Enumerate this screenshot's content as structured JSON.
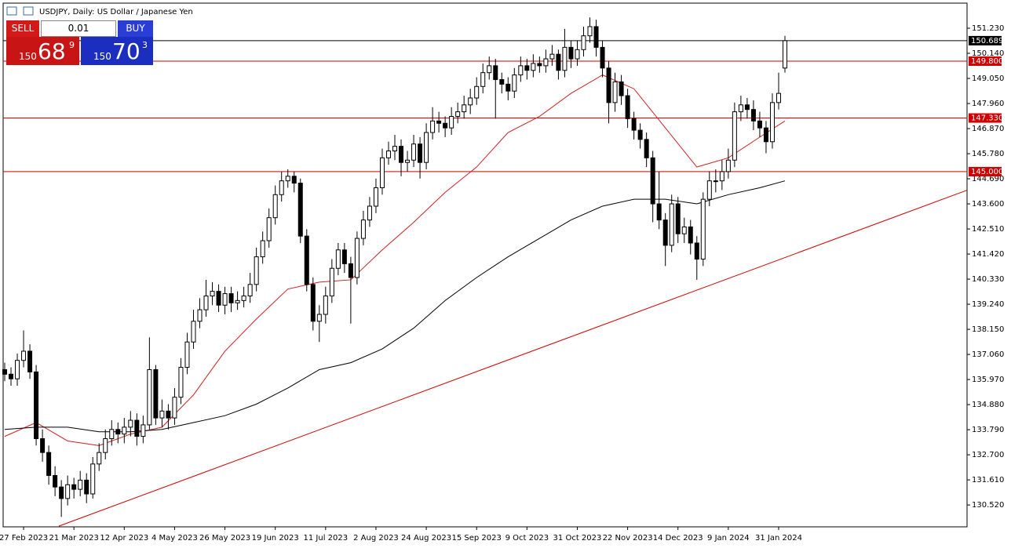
{
  "header": {
    "symbol_title": "USDJPY, Daily:  US Dollar / Japanese Yen"
  },
  "trade_panel": {
    "sell": "SELL",
    "buy": "BUY",
    "lot": "0.01",
    "bid": {
      "big": "150",
      "main": "68",
      "small": "9"
    },
    "ask": {
      "big": "150",
      "main": "70",
      "small": "3"
    }
  },
  "chart_data": {
    "type": "candlestick",
    "open": [
      136.4,
      136.2,
      136.0,
      136.8,
      137.2,
      136.3,
      133.4,
      132.8,
      131.8,
      131.3,
      130.8,
      131.4,
      131.2,
      131.6,
      131.0,
      132.3,
      132.8,
      133.4,
      133.8,
      133.6,
      133.9,
      134.2,
      133.5,
      134.0,
      136.4,
      134.3,
      134.6,
      134.3,
      135.2,
      136.5,
      137.6,
      138.5,
      139.0,
      139.6,
      139.8,
      139.2,
      139.7,
      139.3,
      139.4,
      139.6,
      140.1,
      141.3,
      142.0,
      143.0,
      144.0,
      144.6,
      144.8,
      144.5,
      142.2,
      140.1,
      138.5,
      138.8,
      139.6,
      140.8,
      141.6,
      141.0,
      140.4,
      142.1,
      142.9,
      143.5,
      144.3,
      145.6,
      145.9,
      146.1,
      145.4,
      145.5,
      146.2,
      145.4,
      146.7,
      147.2,
      147.1,
      146.9,
      147.4,
      147.6,
      147.9,
      148.2,
      148.7,
      149.3,
      149.6,
      149.0,
      148.8,
      148.5,
      149.2,
      149.6,
      149.4,
      149.7,
      149.6,
      149.9,
      150.1,
      149.4,
      150.4,
      149.9,
      150.3,
      150.9,
      151.3,
      150.4,
      149.5,
      148.0,
      148.9,
      148.3,
      147.3,
      146.8,
      146.4,
      145.6,
      143.6,
      142.9,
      141.8,
      143.6,
      142.3,
      142.6,
      141.9,
      141.2,
      143.8,
      144.6,
      144.6,
      145.0,
      145.5,
      147.6,
      147.9,
      147.7,
      147.2,
      146.9,
      146.3,
      148.0,
      149.5
    ],
    "high": [
      136.7,
      136.5,
      137.1,
      138.1,
      137.5,
      136.6,
      133.8,
      133.1,
      132.2,
      131.6,
      131.8,
      131.7,
      132.0,
      131.9,
      132.6,
      133.2,
      133.8,
      134.2,
      134.1,
      134.3,
      134.6,
      134.5,
      134.4,
      137.8,
      136.6,
      135.1,
      134.9,
      135.6,
      136.9,
      138.0,
      139.0,
      139.5,
      140.3,
      140.2,
      140.1,
      140.0,
      140.0,
      139.8,
      140.0,
      140.6,
      141.7,
      142.4,
      143.4,
      144.4,
      145.0,
      145.1,
      145.0,
      144.7,
      142.5,
      140.4,
      139.2,
      140.0,
      141.2,
      141.9,
      141.9,
      141.3,
      142.4,
      143.3,
      143.9,
      144.7,
      146.0,
      146.3,
      146.6,
      146.4,
      145.9,
      146.6,
      146.5,
      147.1,
      147.8,
      147.6,
      147.4,
      147.8,
      148.0,
      148.3,
      148.6,
      149.1,
      149.7,
      150.0,
      149.9,
      149.3,
      149.1,
      149.5,
      150.0,
      149.9,
      150.1,
      150.0,
      150.3,
      150.5,
      150.3,
      151.2,
      150.7,
      150.7,
      151.3,
      151.7,
      151.6,
      150.7,
      149.8,
      149.3,
      149.2,
      148.6,
      147.6,
      147.1,
      146.7,
      145.9,
      145.0,
      143.2,
      144.0,
      143.9,
      143.0,
      142.9,
      142.2,
      144.1,
      145.0,
      145.1,
      145.5,
      146.0,
      148.0,
      148.3,
      148.2,
      148.1,
      147.6,
      147.2,
      148.4,
      149.3,
      150.9
    ],
    "low": [
      135.9,
      135.7,
      135.7,
      136.5,
      136.0,
      133.1,
      132.4,
      131.4,
      130.9,
      130.0,
      130.5,
      130.8,
      130.9,
      130.6,
      130.8,
      132.0,
      132.5,
      133.1,
      133.2,
      133.2,
      133.5,
      133.1,
      133.2,
      133.8,
      134.0,
      133.9,
      133.8,
      134.0,
      134.9,
      136.2,
      137.3,
      138.2,
      138.7,
      139.2,
      138.9,
      138.8,
      138.9,
      139.0,
      139.1,
      139.3,
      139.8,
      141.0,
      141.7,
      142.7,
      143.7,
      144.3,
      144.1,
      141.9,
      139.8,
      138.1,
      137.6,
      138.4,
      139.3,
      140.5,
      140.6,
      138.4,
      140.1,
      141.8,
      142.6,
      143.2,
      144.0,
      145.3,
      145.5,
      144.8,
      145.0,
      145.2,
      144.7,
      145.1,
      146.4,
      146.7,
      146.5,
      146.6,
      147.1,
      147.3,
      147.5,
      147.9,
      148.4,
      149.0,
      147.3,
      148.4,
      148.1,
      148.2,
      148.9,
      149.0,
      149.1,
      149.3,
      149.3,
      149.6,
      149.0,
      149.1,
      149.5,
      149.6,
      150.0,
      150.6,
      150.0,
      149.1,
      147.1,
      147.6,
      147.9,
      146.9,
      146.4,
      146.0,
      145.2,
      142.8,
      142.5,
      140.9,
      141.5,
      141.9,
      141.9,
      141.4,
      140.3,
      140.9,
      143.5,
      144.1,
      144.2,
      144.7,
      145.2,
      147.2,
      147.3,
      146.8,
      146.5,
      145.8,
      146.0,
      147.7,
      149.3
    ],
    "close": [
      136.2,
      136.0,
      136.8,
      137.2,
      136.3,
      133.4,
      132.8,
      131.8,
      131.3,
      130.8,
      131.4,
      131.2,
      131.6,
      131.0,
      132.3,
      132.8,
      133.4,
      133.8,
      133.6,
      133.9,
      134.2,
      133.5,
      134.0,
      136.4,
      134.3,
      134.6,
      134.3,
      135.2,
      136.5,
      137.6,
      138.5,
      139.0,
      139.6,
      139.8,
      139.2,
      139.7,
      139.3,
      139.4,
      139.6,
      140.1,
      141.3,
      142.0,
      143.0,
      144.0,
      144.6,
      144.8,
      144.5,
      142.2,
      140.1,
      138.5,
      138.8,
      139.6,
      140.8,
      141.6,
      141.0,
      140.4,
      142.1,
      142.9,
      143.5,
      144.3,
      145.6,
      145.9,
      146.1,
      145.4,
      145.5,
      146.2,
      145.4,
      146.7,
      147.2,
      147.1,
      146.9,
      147.4,
      147.6,
      147.9,
      148.2,
      148.7,
      149.3,
      149.6,
      149.0,
      148.8,
      148.5,
      149.2,
      149.6,
      149.4,
      149.7,
      149.6,
      149.9,
      150.1,
      149.4,
      150.4,
      149.9,
      150.3,
      150.9,
      151.3,
      150.4,
      149.5,
      148.0,
      148.9,
      148.3,
      147.3,
      146.8,
      146.4,
      145.6,
      143.6,
      142.9,
      141.8,
      143.6,
      142.3,
      142.6,
      141.9,
      141.2,
      143.8,
      144.6,
      144.6,
      145.0,
      145.5,
      147.6,
      147.9,
      147.7,
      147.2,
      146.9,
      146.3,
      148.0,
      148.4,
      150.689
    ],
    "x_labels": [
      "27 Feb 2023",
      "21 Mar 2023",
      "12 Apr 2023",
      "4 May 2023",
      "26 May 2023",
      "19 Jun 2023",
      "11 Jul 2023",
      "2 Aug 2023",
      "24 Aug 2023",
      "15 Sep 2023",
      "9 Oct 2023",
      "31 Oct 2023",
      "22 Nov 2023",
      "14 Dec 2023",
      "9 Jan 2024",
      "31 Jan 2024"
    ],
    "ylim": [
      129.57,
      152.32
    ],
    "yticks": [
      {
        "value": 151.23,
        "label": "151.230"
      },
      {
        "value": 150.14,
        "label": "150.140"
      },
      {
        "value": 149.05,
        "label": "149.050"
      },
      {
        "value": 147.96,
        "label": "147.960"
      },
      {
        "value": 146.87,
        "label": "146.870"
      },
      {
        "value": 145.78,
        "label": "145.780"
      },
      {
        "value": 144.69,
        "label": "144.690"
      },
      {
        "value": 143.6,
        "label": "143.600"
      },
      {
        "value": 142.51,
        "label": "142.510"
      },
      {
        "value": 141.42,
        "label": "141.420"
      },
      {
        "value": 140.33,
        "label": "140.330"
      },
      {
        "value": 139.24,
        "label": "139.240"
      },
      {
        "value": 138.15,
        "label": "138.150"
      },
      {
        "value": 137.06,
        "label": "137.060"
      },
      {
        "value": 135.97,
        "label": "135.970"
      },
      {
        "value": 134.88,
        "label": "134.880"
      },
      {
        "value": 133.79,
        "label": "133.790"
      },
      {
        "value": 132.7,
        "label": "132.700"
      },
      {
        "value": 131.61,
        "label": "131.610"
      },
      {
        "value": 130.52,
        "label": "130.520"
      }
    ],
    "moving_averages": [
      {
        "color": "#d02020",
        "x": [
          0,
          5,
          10,
          15,
          20,
          25,
          30,
          35,
          40,
          45,
          50,
          55,
          60,
          65,
          70,
          75,
          80,
          85,
          90,
          95,
          100,
          105,
          110,
          115,
          120,
          124
        ],
        "values": [
          133.5,
          134.1,
          133.3,
          133.1,
          133.6,
          133.9,
          135.3,
          137.2,
          138.6,
          139.9,
          140.2,
          140.3,
          141.6,
          142.8,
          144.1,
          145.2,
          146.7,
          147.4,
          148.4,
          149.2,
          148.6,
          146.9,
          145.2,
          145.6,
          146.5,
          147.2
        ]
      },
      {
        "color": "#000000",
        "x": [
          0,
          5,
          10,
          15,
          20,
          25,
          30,
          35,
          40,
          45,
          50,
          55,
          60,
          65,
          70,
          75,
          80,
          85,
          90,
          95,
          100,
          105,
          110,
          115,
          120,
          124
        ],
        "values": [
          133.8,
          133.9,
          133.9,
          133.7,
          133.7,
          133.8,
          134.1,
          134.4,
          134.9,
          135.6,
          136.4,
          136.7,
          137.3,
          138.2,
          139.4,
          140.4,
          141.3,
          142.1,
          142.9,
          143.5,
          143.8,
          143.8,
          143.6,
          144.0,
          144.3,
          144.6
        ]
      }
    ],
    "price_lines": [
      {
        "value": 150.689,
        "label": "150.689",
        "color": "#000000"
      },
      {
        "value": 149.8,
        "label": "149.800",
        "color": "#d00000"
      },
      {
        "value": 147.33,
        "label": "147.330",
        "color": "#d00000"
      },
      {
        "value": 145.0,
        "label": "145.000",
        "color": "#d00000"
      }
    ],
    "trendline": {
      "color": "#d00000",
      "x": [
        8.6,
        153
      ],
      "values": [
        129.6,
        144.2
      ]
    },
    "up_color": "#ffffff",
    "down_color": "#000000",
    "outline_color": "#000000"
  }
}
